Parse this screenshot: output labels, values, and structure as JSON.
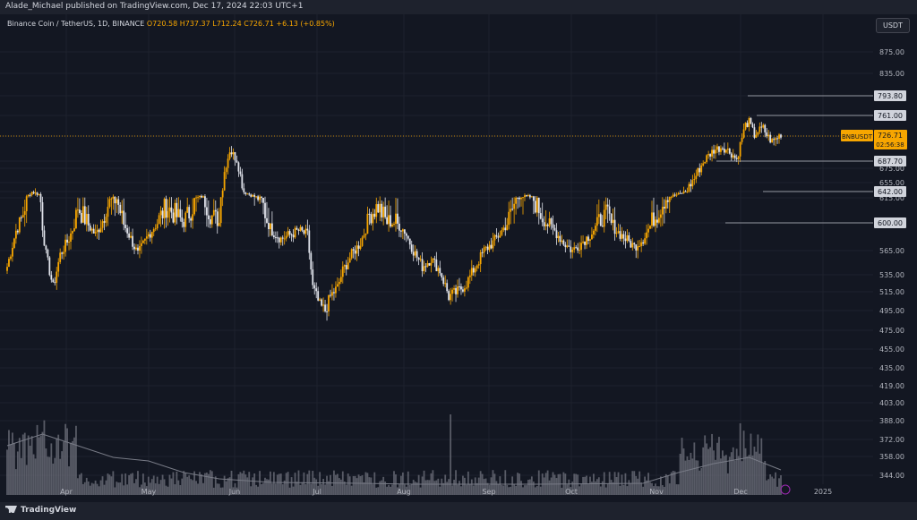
{
  "header": {
    "publisher_line": "Alade_Michael published on TradingView.com, Dec 17, 2024 22:03 UTC+1"
  },
  "legend": {
    "symbol": "Binance Coin / TetherUS, 1D, BINANCE",
    "ohlc": "O720.58 H737.37 L712.24 C726.71 +6.13 (+0.85%)"
  },
  "currency_button": "USDT",
  "footer": {
    "brand": "TradingView"
  },
  "colors": {
    "up": "#f7a600",
    "down": "#e0e3eb",
    "background": "#131722",
    "grid": "#1e222d",
    "axis_text": "#b2b5be"
  },
  "chart_data": {
    "type": "candlestick",
    "symbol": "BNBUSDT",
    "last_price": "726.71",
    "countdown": "02:56:38",
    "price_axis_ticks": [
      "875.00",
      "835.00",
      "793.80",
      "761.00",
      "726.71",
      "687.70",
      "675.00",
      "655.00",
      "642.00",
      "615.00",
      "600.00",
      "565.00",
      "535.00",
      "515.00",
      "495.00",
      "475.00",
      "455.00",
      "435.00",
      "419.00",
      "403.00",
      "388.00",
      "372.00",
      "358.00",
      "344.00"
    ],
    "time_axis_labels": [
      "Apr",
      "May",
      "Jun",
      "Jul",
      "Aug",
      "Sep",
      "Oct",
      "Nov",
      "Dec",
      "2025"
    ],
    "levels": [
      {
        "label": "793.80",
        "value": 793.8
      },
      {
        "label": "761.00",
        "value": 761
      },
      {
        "label": "687.70",
        "value": 687.7
      },
      {
        "label": "642.00",
        "value": 642
      },
      {
        "label": "600.00",
        "value": 600
      }
    ],
    "anchors": [
      [
        0,
        545
      ],
      [
        5,
        590
      ],
      [
        10,
        610
      ],
      [
        14,
        640
      ],
      [
        18,
        630
      ],
      [
        22,
        560
      ],
      [
        26,
        520
      ],
      [
        30,
        560
      ],
      [
        35,
        580
      ],
      [
        40,
        610
      ],
      [
        45,
        600
      ],
      [
        50,
        585
      ],
      [
        56,
        610
      ],
      [
        62,
        615
      ],
      [
        68,
        590
      ],
      [
        74,
        560
      ],
      [
        80,
        585
      ],
      [
        85,
        600
      ],
      [
        90,
        610
      ],
      [
        95,
        605
      ],
      [
        100,
        600
      ],
      [
        105,
        610
      ],
      [
        110,
        620
      ],
      [
        115,
        605
      ],
      [
        120,
        600
      ],
      [
        123,
        670
      ],
      [
        126,
        705
      ],
      [
        130,
        690
      ],
      [
        134,
        640
      ],
      [
        140,
        620
      ],
      [
        145,
        610
      ],
      [
        150,
        590
      ],
      [
        155,
        580
      ],
      [
        160,
        585
      ],
      [
        165,
        590
      ],
      [
        170,
        585
      ],
      [
        173,
        520
      ],
      [
        177,
        500
      ],
      [
        180,
        495
      ],
      [
        183,
        510
      ],
      [
        187,
        520
      ],
      [
        190,
        540
      ],
      [
        195,
        560
      ],
      [
        200,
        575
      ],
      [
        205,
        605
      ],
      [
        210,
        610
      ],
      [
        215,
        600
      ],
      [
        220,
        600
      ],
      [
        225,
        590
      ],
      [
        230,
        565
      ],
      [
        235,
        545
      ],
      [
        240,
        555
      ],
      [
        245,
        540
      ],
      [
        250,
        510
      ],
      [
        255,
        515
      ],
      [
        260,
        525
      ],
      [
        265,
        545
      ],
      [
        270,
        565
      ],
      [
        275,
        575
      ],
      [
        280,
        590
      ],
      [
        285,
        605
      ],
      [
        290,
        620
      ],
      [
        295,
        620
      ],
      [
        300,
        610
      ],
      [
        305,
        600
      ],
      [
        310,
        590
      ],
      [
        315,
        575
      ],
      [
        320,
        565
      ],
      [
        325,
        575
      ],
      [
        330,
        585
      ],
      [
        335,
        600
      ],
      [
        340,
        605
      ],
      [
        345,
        590
      ],
      [
        350,
        580
      ],
      [
        355,
        570
      ],
      [
        360,
        580
      ],
      [
        365,
        600
      ],
      [
        370,
        610
      ],
      [
        375,
        620
      ],
      [
        380,
        630
      ],
      [
        385,
        645
      ],
      [
        390,
        665
      ],
      [
        395,
        690
      ],
      [
        400,
        705
      ],
      [
        405,
        710
      ],
      [
        410,
        700
      ],
      [
        413,
        690
      ],
      [
        416,
        725
      ],
      [
        418,
        745
      ],
      [
        420,
        750
      ],
      [
        423,
        728
      ],
      [
        425,
        735
      ],
      [
        428,
        740
      ],
      [
        430,
        728
      ],
      [
        433,
        718
      ],
      [
        435,
        722
      ],
      [
        438,
        730
      ]
    ],
    "volume_ma": [
      [
        0,
        0.55
      ],
      [
        20,
        0.68
      ],
      [
        40,
        0.55
      ],
      [
        60,
        0.42
      ],
      [
        80,
        0.38
      ],
      [
        100,
        0.25
      ],
      [
        120,
        0.18
      ],
      [
        150,
        0.14
      ],
      [
        200,
        0.13
      ],
      [
        230,
        0.12
      ],
      [
        300,
        0.12
      ],
      [
        360,
        0.13
      ],
      [
        380,
        0.25
      ],
      [
        400,
        0.35
      ],
      [
        420,
        0.42
      ],
      [
        438,
        0.28
      ]
    ]
  }
}
